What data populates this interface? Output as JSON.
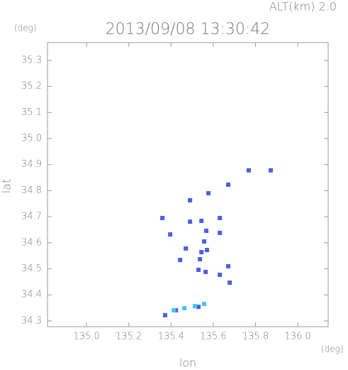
{
  "chart_data": {
    "type": "scatter",
    "title": "2013/09/08 13:30:42",
    "subtitle": "ALT(km) 2.0",
    "y_unit": "(deg)",
    "x_unit": "(deg)",
    "x_label": "lon",
    "y_label": "lat",
    "xlim": [
      134.815,
      136.144
    ],
    "ylim": [
      34.278,
      35.368
    ],
    "xticks": [
      {
        "value": 135.0,
        "label": "135.0"
      },
      135.2,
      135.4,
      135.6,
      135.8,
      {
        "value": 136.0,
        "label": "136.0"
      }
    ],
    "yticks": [
      34.3,
      34.4,
      34.5,
      34.6,
      34.7,
      34.8,
      34.9,
      {
        "value": 35.0,
        "label": "35.0"
      },
      35.1,
      35.2,
      35.3
    ],
    "series": [
      {
        "color": "#4a5ee8",
        "x": [
          135.359,
          135.396,
          135.49,
          135.577,
          135.49,
          135.544,
          135.567,
          135.631,
          135.631,
          135.47,
          135.557,
          135.544,
          135.57,
          135.537,
          135.53,
          135.564,
          135.631,
          135.671,
          135.678,
          135.443,
          135.768,
          135.872,
          135.671,
          135.372,
          135.423,
          135.53
        ],
        "y": [
          34.695,
          34.632,
          34.763,
          34.79,
          34.681,
          34.684,
          34.646,
          34.695,
          34.638,
          34.578,
          34.605,
          34.564,
          34.572,
          34.537,
          34.496,
          34.488,
          34.477,
          34.51,
          34.447,
          34.534,
          34.878,
          34.878,
          34.823,
          34.322,
          34.341,
          34.354
        ]
      },
      {
        "color": "#40c8f0",
        "x": [
          135.413,
          135.463,
          135.513,
          135.557
        ],
        "y": [
          34.341,
          34.349,
          34.357,
          34.365
        ]
      }
    ]
  }
}
